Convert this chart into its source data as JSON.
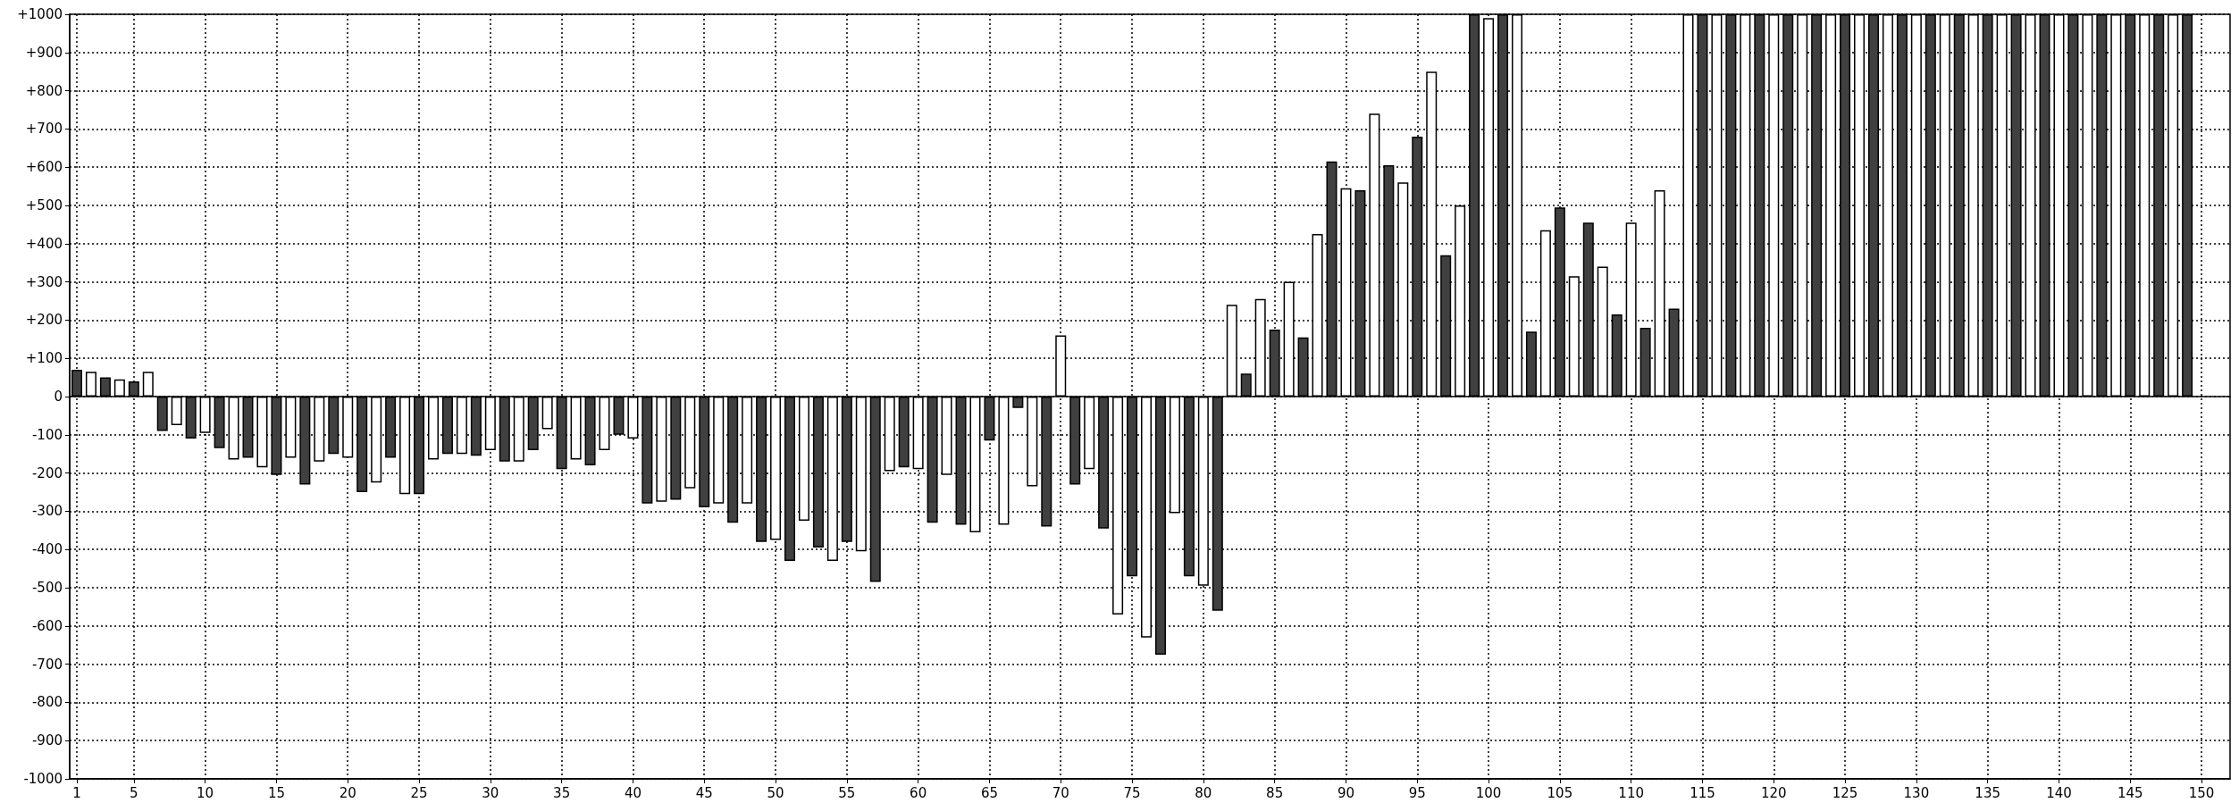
{
  "chart_data": {
    "type": "bar",
    "x": [
      1,
      2,
      3,
      4,
      5,
      6,
      7,
      8,
      9,
      10,
      11,
      12,
      13,
      14,
      15,
      16,
      17,
      18,
      19,
      20,
      21,
      22,
      23,
      24,
      25,
      26,
      27,
      28,
      29,
      30,
      31,
      32,
      33,
      34,
      35,
      36,
      37,
      38,
      39,
      40,
      41,
      42,
      43,
      44,
      45,
      46,
      47,
      48,
      49,
      50,
      51,
      52,
      53,
      54,
      55,
      56,
      57,
      58,
      59,
      60,
      61,
      62,
      63,
      64,
      65,
      66,
      67,
      68,
      69,
      70,
      71,
      72,
      73,
      74,
      75,
      76,
      77,
      78,
      79,
      80,
      81,
      82,
      83,
      84,
      85,
      86,
      87,
      88,
      89,
      90,
      91,
      92,
      93,
      94,
      95,
      96,
      97,
      98,
      99,
      100,
      101,
      102,
      103,
      104,
      105,
      106,
      107,
      108,
      109,
      110,
      111,
      112,
      113,
      114,
      115,
      116,
      117,
      118,
      119,
      120,
      121,
      122,
      123,
      124,
      125,
      126,
      127,
      128,
      129,
      130,
      131,
      132,
      133,
      134,
      135,
      136,
      137,
      138,
      139,
      140,
      141,
      142,
      143,
      144,
      145,
      146,
      147,
      148,
      149
    ],
    "values": [
      70,
      65,
      50,
      45,
      40,
      65,
      -90,
      -75,
      -110,
      -95,
      -135,
      -165,
      -160,
      -185,
      -205,
      -160,
      -230,
      -170,
      -150,
      -160,
      -250,
      -225,
      -160,
      -255,
      -255,
      -165,
      -150,
      -150,
      -155,
      -140,
      -170,
      -170,
      -140,
      -85,
      -190,
      -165,
      -180,
      -140,
      -100,
      -110,
      -280,
      -275,
      -270,
      -240,
      -290,
      -280,
      -330,
      -280,
      -380,
      -375,
      -430,
      -325,
      -395,
      -430,
      -380,
      -405,
      -485,
      -195,
      -185,
      -190,
      -330,
      -205,
      -335,
      -355,
      -115,
      -335,
      -30,
      -235,
      -340,
      160,
      -230,
      -190,
      -345,
      -570,
      -470,
      -630,
      -675,
      -305,
      -470,
      -495,
      -560,
      240,
      60,
      255,
      175,
      300,
      155,
      425,
      615,
      545,
      540,
      740,
      605,
      560,
      680,
      850,
      370,
      500,
      1000,
      990,
      1000,
      1000,
      170,
      435,
      495,
      315,
      455,
      340,
      215,
      455,
      180,
      540,
      230,
      1000,
      1000,
      1000,
      1000,
      1000,
      1000,
      1000,
      1000,
      1000,
      1000,
      1000,
      1000,
      1000,
      1000,
      1000,
      1000,
      1000,
      1000,
      1000,
      1000,
      1000,
      1000,
      1000,
      1000,
      1000,
      1000,
      1000,
      1000,
      1000,
      1000,
      1000,
      1000,
      1000,
      1000,
      1000,
      1000
    ],
    "colors": [
      "#404040",
      "#ffffff",
      "#404040",
      "#ffffff",
      "#404040",
      "#ffffff",
      "#404040",
      "#ffffff",
      "#404040",
      "#ffffff",
      "#404040",
      "#ffffff",
      "#404040",
      "#ffffff",
      "#404040",
      "#ffffff",
      "#404040",
      "#ffffff",
      "#404040",
      "#ffffff",
      "#404040",
      "#ffffff",
      "#404040",
      "#ffffff",
      "#404040",
      "#ffffff",
      "#404040",
      "#ffffff",
      "#404040",
      "#ffffff",
      "#404040",
      "#ffffff",
      "#404040",
      "#ffffff",
      "#404040",
      "#ffffff",
      "#404040",
      "#ffffff",
      "#404040",
      "#ffffff",
      "#404040",
      "#ffffff",
      "#404040",
      "#ffffff",
      "#404040",
      "#ffffff",
      "#404040",
      "#ffffff",
      "#404040",
      "#ffffff",
      "#404040",
      "#ffffff",
      "#404040",
      "#ffffff",
      "#404040",
      "#ffffff",
      "#404040",
      "#ffffff",
      "#404040",
      "#ffffff",
      "#404040",
      "#ffffff",
      "#404040",
      "#ffffff",
      "#404040",
      "#ffffff",
      "#404040",
      "#ffffff",
      "#404040",
      "#ffffff",
      "#404040",
      "#ffffff",
      "#404040",
      "#ffffff",
      "#404040",
      "#ffffff",
      "#404040",
      "#ffffff",
      "#404040",
      "#ffffff",
      "#404040",
      "#ffffff",
      "#404040",
      "#ffffff",
      "#404040",
      "#ffffff",
      "#404040",
      "#ffffff",
      "#404040",
      "#ffffff",
      "#404040",
      "#ffffff",
      "#404040",
      "#ffffff",
      "#404040",
      "#ffffff",
      "#404040",
      "#ffffff",
      "#404040",
      "#ffffff",
      "#404040",
      "#ffffff",
      "#404040",
      "#ffffff",
      "#404040",
      "#ffffff",
      "#404040",
      "#ffffff",
      "#404040",
      "#ffffff",
      "#404040",
      "#ffffff",
      "#404040",
      "#ffffff",
      "#404040",
      "#ffffff",
      "#404040",
      "#ffffff",
      "#404040",
      "#ffffff",
      "#404040",
      "#ffffff",
      "#404040",
      "#ffffff",
      "#404040",
      "#ffffff",
      "#404040",
      "#ffffff",
      "#404040",
      "#ffffff",
      "#404040",
      "#ffffff",
      "#404040",
      "#ffffff",
      "#404040",
      "#ffffff",
      "#404040",
      "#ffffff",
      "#404040",
      "#ffffff",
      "#404040",
      "#ffffff",
      "#404040",
      "#ffffff",
      "#404040",
      "#ffffff",
      "#404040",
      "#ffffff",
      "#404040"
    ],
    "xlim": [
      0.5,
      152
    ],
    "xticks": [
      1,
      5,
      10,
      15,
      20,
      25,
      30,
      35,
      40,
      45,
      50,
      55,
      60,
      65,
      70,
      75,
      80,
      85,
      90,
      95,
      100,
      105,
      110,
      115,
      120,
      125,
      130,
      135,
      140,
      145,
      150
    ],
    "ylim": [
      -1000,
      1000
    ],
    "yticks": [
      -1000,
      -900,
      -800,
      -700,
      -600,
      -500,
      -400,
      -300,
      -200,
      -100,
      0,
      {
        "value": 100,
        "label": "+100"
      },
      {
        "value": 200,
        "label": "+200"
      },
      {
        "value": 300,
        "label": "+300"
      },
      {
        "value": 400,
        "label": "+400"
      },
      {
        "value": 500,
        "label": "+500"
      },
      {
        "value": 600,
        "label": "+600"
      },
      {
        "value": 700,
        "label": "+700"
      },
      {
        "value": 800,
        "label": "+800"
      },
      {
        "value": 900,
        "label": "+900"
      },
      {
        "value": 1000,
        "label": "+1000"
      }
    ],
    "grid": true
  }
}
